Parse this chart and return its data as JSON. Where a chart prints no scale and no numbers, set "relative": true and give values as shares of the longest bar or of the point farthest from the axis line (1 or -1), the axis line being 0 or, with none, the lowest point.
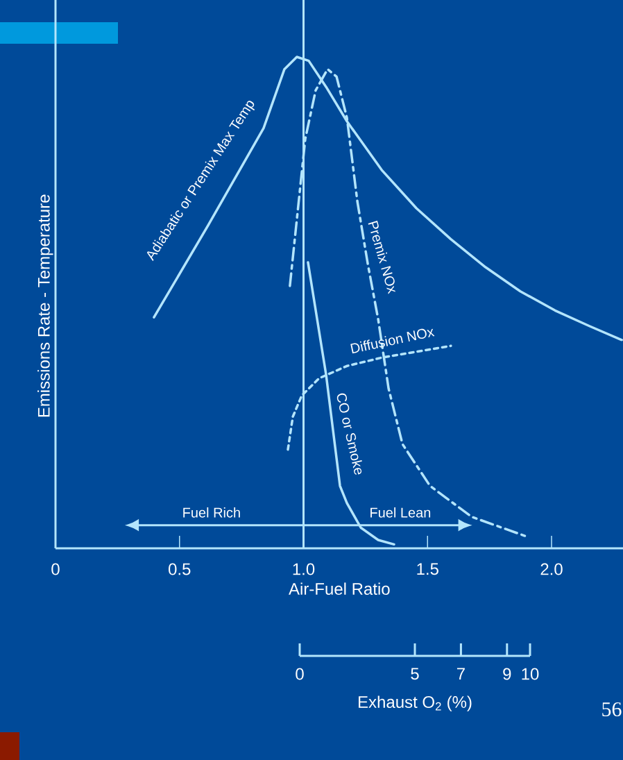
{
  "chart_data": {
    "type": "line",
    "relative": true,
    "xlabel": "Air-Fuel Ratio",
    "ylabel": "Emissions Rate - Temperature",
    "x2label": "Exhaust O$_{2}$ (%)",
    "xlim": [
      0,
      2.29
    ],
    "xticks": [
      0,
      0.5,
      {
        "value": 1.0,
        "label": "1.0"
      },
      1.5,
      {
        "value": 2.0,
        "label": "2.0"
      }
    ],
    "x2lim": [
      0,
      10
    ],
    "x2ticks": [
      0,
      5,
      7,
      9,
      10
    ],
    "ref_lines": [
      {
        "axis": "x",
        "value": 1.0,
        "color": "#b3e5fc"
      }
    ],
    "annotations": [
      "Fuel Rich",
      "Fuel Lean",
      "56"
    ],
    "series": [
      {
        "name": "Adiabatic or Premix Max Temp",
        "color": "#b3e5fc",
        "line_style": "solid",
        "x": [
          0.397,
          0.615,
          0.839,
          0.923,
          0.973,
          1.021,
          1.091,
          1.175,
          1.315,
          1.455,
          1.594,
          1.734,
          1.874,
          2.014,
          2.154,
          2.283
        ],
        "values": [
          0.47,
          0.657,
          0.855,
          0.975,
          1.0,
          0.992,
          0.939,
          0.869,
          0.77,
          0.692,
          0.629,
          0.572,
          0.523,
          0.484,
          0.452,
          0.424
        ]
      },
      {
        "name": "Premix NOx",
        "color": "#b3e5fc",
        "line_style": "dashdot",
        "x": [
          0.945,
          1.007,
          1.049,
          1.097,
          1.133,
          1.175,
          1.217,
          1.259,
          1.301,
          1.343,
          1.399,
          1.51,
          1.678,
          1.894
        ],
        "values": [
          0.534,
          0.833,
          0.932,
          0.975,
          0.96,
          0.876,
          0.706,
          0.579,
          0.466,
          0.325,
          0.212,
          0.127,
          0.064,
          0.025
        ]
      },
      {
        "name": "Diffusion NOx",
        "color": "#b3e5fc",
        "line_style": "dotted",
        "x": [
          0.937,
          0.957,
          0.993,
          1.063,
          1.175,
          1.315,
          1.455,
          1.594
        ],
        "values": [
          0.201,
          0.268,
          0.311,
          0.346,
          0.371,
          0.388,
          0.4,
          0.412
        ]
      },
      {
        "name": "CO or Smoke",
        "color": "#b3e5fc",
        "line_style": "solid",
        "x": [
          1.018,
          1.091,
          1.147,
          1.175,
          1.231,
          1.301,
          1.365
        ],
        "values": [
          0.582,
          0.353,
          0.127,
          0.092,
          0.042,
          0.017,
          0.008
        ]
      }
    ]
  }
}
